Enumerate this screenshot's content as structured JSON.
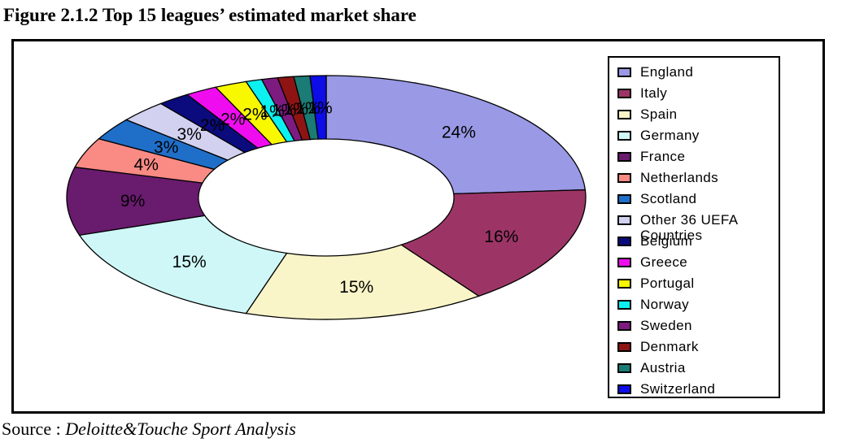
{
  "title": "Figure 2.1.2 Top 15 leagues’ estimated market share",
  "source": {
    "prefix": "Source : ",
    "text": "Deloitte&Touche Sport Analysis"
  },
  "chart_data": {
    "type": "pie",
    "subtype": "doughnut",
    "title": "Top 15 leagues' estimated market share",
    "unit": "%",
    "direction": "clockwise",
    "start_angle_deg": 0,
    "legend_position": "right",
    "hole_ratio": 0.49,
    "categories": [
      "England",
      "Italy",
      "Spain",
      "Germany",
      "France",
      "Netherlands",
      "Scotland",
      "Other 36 UEFA Countries",
      "Belgium",
      "Greece",
      "Portugal",
      "Norway",
      "Sweden",
      "Denmark",
      "Austria",
      "Switzerland"
    ],
    "values": [
      24,
      16,
      15,
      15,
      9,
      4,
      3,
      3,
      2,
      2,
      2,
      1,
      1,
      1,
      1,
      1
    ],
    "labels": [
      "24%",
      "16%",
      "15%",
      "15%",
      "9%",
      "4%",
      "3%",
      "3%",
      "2%",
      "2%",
      "2%",
      "1%",
      "1%",
      "1%",
      "1%",
      "1%"
    ],
    "colors": [
      "#9999E6",
      "#9C3566",
      "#FAF5C8",
      "#CFF7F7",
      "#691B6E",
      "#F98B84",
      "#1F6FC9",
      "#D2D1F0",
      "#0B0B7E",
      "#EF0DEF",
      "#F8F800",
      "#0DF0F0",
      "#7D1B80",
      "#8E1414",
      "#1A7C74",
      "#0D0DE8"
    ],
    "label_color": "#000000",
    "slice_outline_color": "#000000"
  }
}
